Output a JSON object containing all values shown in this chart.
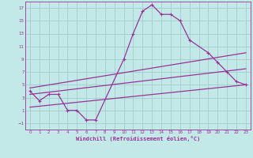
{
  "xlabel": "Windchill (Refroidissement éolien,°C)",
  "background_color": "#c2e8e8",
  "grid_color": "#a8d0d0",
  "line_color": "#993399",
  "xlim": [
    -0.5,
    23.5
  ],
  "ylim": [
    -2,
    18
  ],
  "xticks": [
    0,
    1,
    2,
    3,
    4,
    5,
    6,
    7,
    8,
    9,
    10,
    11,
    12,
    13,
    14,
    15,
    16,
    17,
    18,
    19,
    20,
    21,
    22,
    23
  ],
  "yticks": [
    -1,
    1,
    3,
    5,
    7,
    9,
    11,
    13,
    15,
    17
  ],
  "line1_x": [
    0,
    1,
    2,
    3,
    4,
    5,
    6,
    7,
    10,
    11,
    12,
    13,
    14,
    15,
    16,
    17,
    19,
    20,
    21,
    22,
    23
  ],
  "line1_y": [
    4,
    2.5,
    3.5,
    3.5,
    1,
    1,
    -0.5,
    -0.5,
    9,
    13,
    16.5,
    17.5,
    16,
    16,
    15,
    12,
    10,
    8.5,
    7,
    5.5,
    5
  ],
  "line2_x": [
    0,
    23
  ],
  "line2_y": [
    1.5,
    5.0
  ],
  "line3_x": [
    0,
    23
  ],
  "line3_y": [
    3.5,
    7.5
  ],
  "line4_x": [
    0,
    23
  ],
  "line4_y": [
    4.5,
    10.0
  ]
}
